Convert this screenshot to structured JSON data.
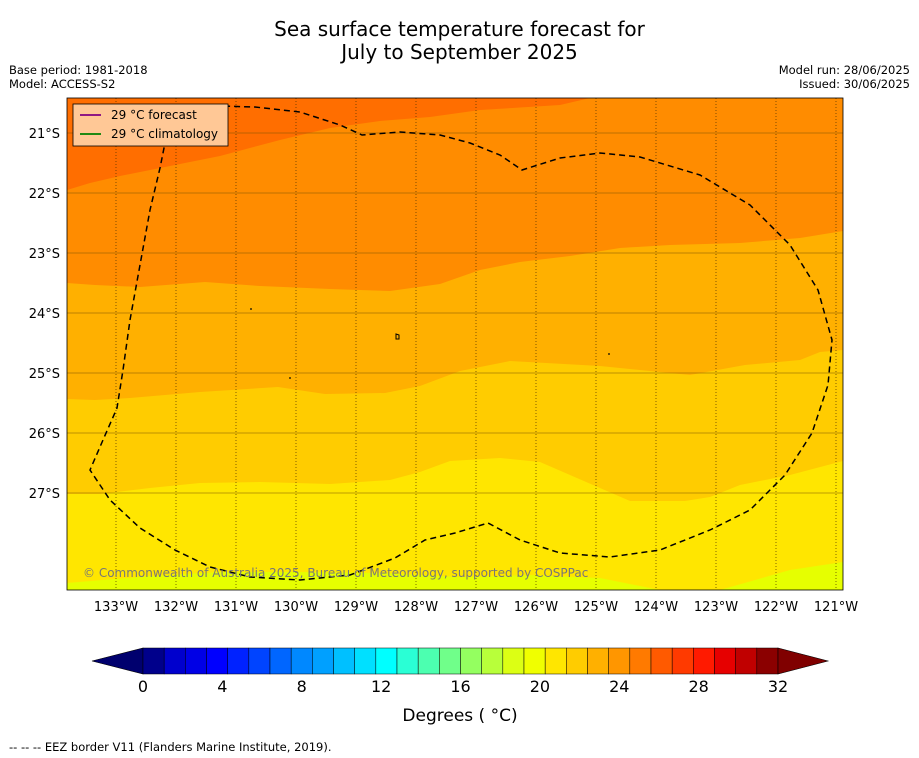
{
  "title_line1": "Sea surface temperature forecast for",
  "title_line2": "July to September 2025",
  "base_period": "Base period: 1981-2018",
  "model": "Model: ACCESS-S2",
  "model_run": "Model run: 28/06/2025",
  "issued": "Issued: 30/06/2025",
  "legend": {
    "forecast": "29 °C  forecast",
    "climatology": "29 °C  climatology",
    "forecast_color": "#800080",
    "climatology_color": "#008000"
  },
  "copyright": "© Commonwealth of Australia 2025, Bureau of Meteorology, supported by COSPPac",
  "lon_labels": [
    "133°W",
    "132°W",
    "131°W",
    "130°W",
    "129°W",
    "128°W",
    "127°W",
    "126°W",
    "125°W",
    "124°W",
    "123°W",
    "122°W",
    "121°W"
  ],
  "lat_labels": [
    "21°S",
    "22°S",
    "23°S",
    "24°S",
    "25°S",
    "26°S",
    "27°S"
  ],
  "colorbar": {
    "ticks": [
      "0",
      "4",
      "8",
      "12",
      "16",
      "20",
      "24",
      "28",
      "32"
    ],
    "label": "Degrees ( °C)",
    "min": 0,
    "max": 32,
    "step": 1.6,
    "colors": [
      "#00008b",
      "#0000cd",
      "#0000e6",
      "#0000ff",
      "#0022ff",
      "#0044ff",
      "#0066ff",
      "#0088ff",
      "#00a0ff",
      "#00c0ff",
      "#00e0ff",
      "#00ffff",
      "#2affd5",
      "#4cffb0",
      "#70ff8a",
      "#94ff60",
      "#b8ff3a",
      "#dcff14",
      "#f0ff00",
      "#ffe600",
      "#ffcc00",
      "#ffb000",
      "#ff9600",
      "#ff7a00",
      "#ff5a00",
      "#ff3a00",
      "#ff1a00",
      "#e60000",
      "#c00000",
      "#8b0000"
    ],
    "under_color": "#00006e",
    "over_color": "#800000"
  },
  "footer": "--  --  -- EEZ border V11 (Flanders Marine Institute, 2019)."
}
